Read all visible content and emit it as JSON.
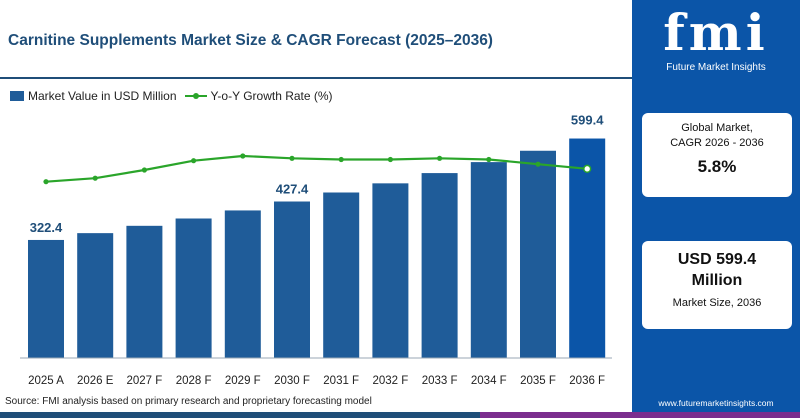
{
  "header": {
    "title": "Carnitine Supplements Market Size & CAGR Forecast (2025–2036)"
  },
  "legend": {
    "bar_label": "Market Value in USD Million",
    "line_label": "Y-o-Y Growth Rate (%)"
  },
  "chart_data": {
    "type": "bar",
    "categories": [
      "2025 A",
      "2026 E",
      "2027 F",
      "2028 F",
      "2029 F",
      "2030 F",
      "2031 F",
      "2032 F",
      "2033 F",
      "2034 F",
      "2035 F",
      "2036 F"
    ],
    "series": [
      {
        "name": "Market Value in USD Million",
        "type": "bar",
        "values": [
          322.4,
          341.0,
          361.0,
          381.0,
          403.0,
          427.4,
          452.0,
          477.0,
          505.0,
          535.0,
          566.0,
          599.4
        ]
      },
      {
        "name": "Y-o-Y Growth Rate (%)",
        "type": "line",
        "values": [
          5.0,
          5.3,
          6.0,
          6.8,
          7.2,
          7.0,
          6.9,
          6.9,
          7.0,
          6.9,
          6.5,
          6.1
        ]
      }
    ],
    "data_labels": [
      {
        "index": 0,
        "text": "322.4"
      },
      {
        "index": 5,
        "text": "427.4"
      },
      {
        "index": 11,
        "text": "599.4"
      }
    ],
    "ylim": [
      0,
      650
    ],
    "line_ylim": [
      0,
      12
    ],
    "grid": false,
    "legend_position": "top-left",
    "colors": {
      "bar": "#1f5c99",
      "bar_last": "#0b55a8",
      "line": "#2aa52a",
      "label": "#1f4e79"
    }
  },
  "source": "Source: FMI analysis based on primary research and proprietary forecasting model",
  "sidebar": {
    "logo_text": "fmi",
    "logo_subtitle": "Future Market Insights",
    "cards": [
      {
        "label_line1": "Global Market,",
        "label_line2": "CAGR 2026 - 2036",
        "value": "5.8%"
      },
      {
        "value_line1": "USD 599.4",
        "value_line2": "Million",
        "label": "Market Size, 2036"
      }
    ],
    "website": "www.futuremarketinsights.com",
    "background": "#0b55a8"
  }
}
